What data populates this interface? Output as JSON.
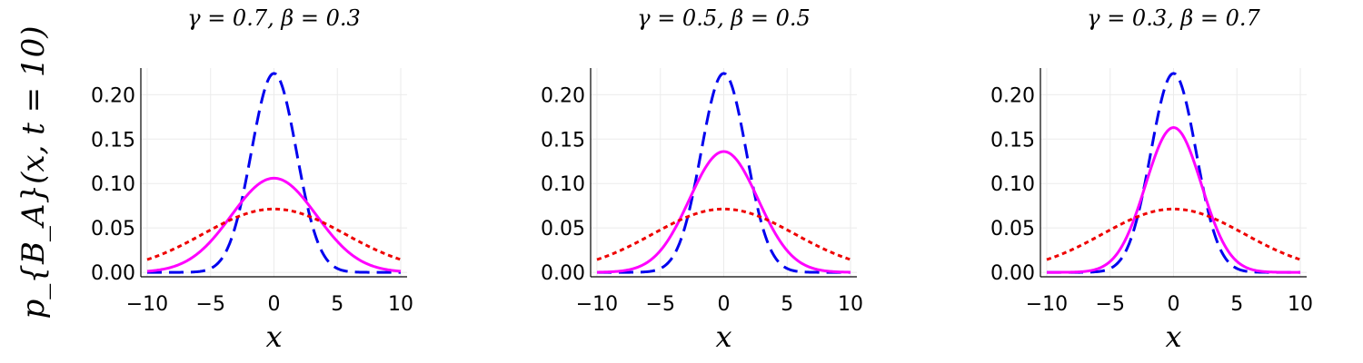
{
  "ylabel": "p_{B_A}(x, t = 10)",
  "chart_data": [
    {
      "type": "line",
      "title": "γ = 0.7, β = 0.3",
      "xlabel": "x",
      "ylabel": "p_{B_A}(x, t = 10)",
      "xlim": [
        -10.5,
        10.5
      ],
      "ylim": [
        -0.005,
        0.23
      ],
      "xticks": [
        -10,
        -5,
        0,
        5,
        10
      ],
      "xtick_labels": [
        "−10",
        "−5",
        "0",
        "5",
        "10"
      ],
      "yticks": [
        0.0,
        0.05,
        0.1,
        0.15,
        0.2
      ],
      "ytick_labels": [
        "0.00",
        "0.05",
        "0.10",
        "0.15",
        "0.20"
      ],
      "grid": true,
      "series": [
        {
          "style": "dashed",
          "color": "#0000ee",
          "sigma": 1.78,
          "peak": 0.224
        },
        {
          "style": "solid",
          "color": "#ff00ff",
          "sigma": 3.35,
          "peak": 0.106
        },
        {
          "style": "dotted",
          "color": "#ee0000",
          "sigma": 5.59,
          "peak": 0.0713
        }
      ]
    },
    {
      "type": "line",
      "title": "γ = 0.5, β = 0.5",
      "xlabel": "x",
      "xlim": [
        -10.5,
        10.5
      ],
      "ylim": [
        -0.005,
        0.23
      ],
      "xticks": [
        -10,
        -5,
        0,
        5,
        10
      ],
      "xtick_labels": [
        "−10",
        "−5",
        "0",
        "5",
        "10"
      ],
      "yticks": [
        0.0,
        0.05,
        0.1,
        0.15,
        0.2
      ],
      "ytick_labels": [
        "0.00",
        "0.05",
        "0.10",
        "0.15",
        "0.20"
      ],
      "grid": true,
      "series": [
        {
          "style": "dashed",
          "color": "#0000ee",
          "sigma": 1.78,
          "peak": 0.224
        },
        {
          "style": "solid",
          "color": "#ff00ff",
          "sigma": 2.7,
          "peak": 0.136
        },
        {
          "style": "dotted",
          "color": "#ee0000",
          "sigma": 5.59,
          "peak": 0.0713
        }
      ]
    },
    {
      "type": "line",
      "title": "γ = 0.3, β = 0.7",
      "xlabel": "x",
      "xlim": [
        -10.5,
        10.5
      ],
      "ylim": [
        -0.005,
        0.23
      ],
      "xticks": [
        -10,
        -5,
        0,
        5,
        10
      ],
      "xtick_labels": [
        "−10",
        "−5",
        "0",
        "5",
        "10"
      ],
      "yticks": [
        0.0,
        0.05,
        0.1,
        0.15,
        0.2
      ],
      "ytick_labels": [
        "0.00",
        "0.05",
        "0.10",
        "0.15",
        "0.20"
      ],
      "grid": true,
      "series": [
        {
          "style": "dashed",
          "color": "#0000ee",
          "sigma": 1.78,
          "peak": 0.224
        },
        {
          "style": "solid",
          "color": "#ff00ff",
          "sigma": 2.2,
          "peak": 0.163
        },
        {
          "style": "dotted",
          "color": "#ee0000",
          "sigma": 5.59,
          "peak": 0.0713
        }
      ]
    }
  ]
}
